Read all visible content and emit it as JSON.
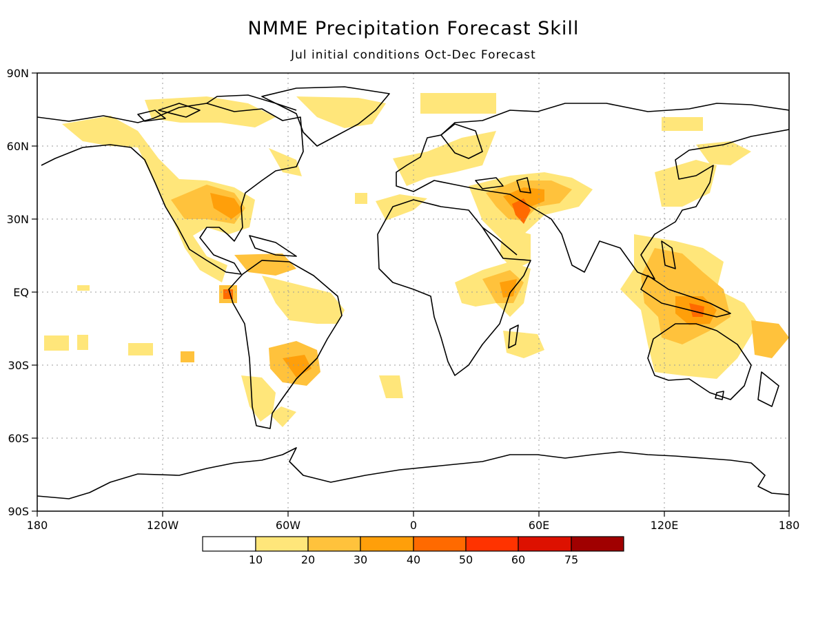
{
  "header": {
    "title": "NMME Precipitation Forecast Skill",
    "subtitle": "Jul initial conditions   Oct-Dec Forecast"
  },
  "axes": {
    "lat_labels": [
      "90N",
      "60N",
      "30N",
      "EQ",
      "30S",
      "60S",
      "90S"
    ],
    "lon_labels": [
      "180",
      "120W",
      "60W",
      "0",
      "60E",
      "120E",
      "180"
    ]
  },
  "legend": {
    "colors": [
      "#ffffff",
      "#ffe67a",
      "#ffc23c",
      "#ff9f0a",
      "#ff6a00",
      "#ff3300",
      "#dd1100",
      "#a00000"
    ],
    "labels": [
      "10",
      "20",
      "30",
      "40",
      "50",
      "60",
      "75"
    ]
  },
  "skill_regions": [
    {
      "name": "north-america-east",
      "level": 2
    },
    {
      "name": "east-pacific-equatorial",
      "level": 4
    },
    {
      "name": "south-america-southeast",
      "level": 3
    },
    {
      "name": "middle-east",
      "level": 4
    },
    {
      "name": "east-africa",
      "level": 4
    },
    {
      "name": "maritime-continent",
      "level": 4
    },
    {
      "name": "australia-north",
      "level": 3
    }
  ]
}
